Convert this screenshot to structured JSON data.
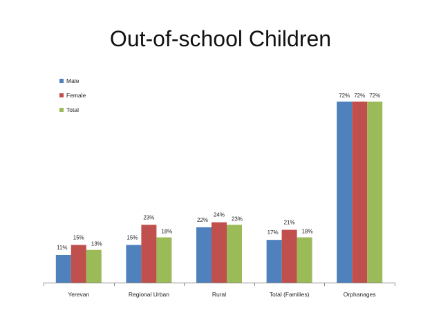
{
  "slide": {
    "title": "Out-of-school Children"
  },
  "chart_data": {
    "type": "bar",
    "title": "Out-of-school Children",
    "categories": [
      "Yerevan",
      "Regional Urban",
      "Rural",
      "Total (Families)",
      "Orphanages"
    ],
    "series": [
      {
        "name": "Male",
        "color": "#4f81bd",
        "values": [
          11,
          15,
          22,
          17,
          72
        ]
      },
      {
        "name": "Female",
        "color": "#c0504d",
        "values": [
          15,
          23,
          24,
          21,
          72
        ]
      },
      {
        "name": "Total",
        "color": "#9bbb59",
        "values": [
          13,
          18,
          23,
          18,
          72
        ]
      }
    ],
    "value_suffix": "%",
    "ylim": [
      0,
      72
    ],
    "grid": false,
    "legend": "top-left",
    "xlabel": "",
    "ylabel": ""
  }
}
